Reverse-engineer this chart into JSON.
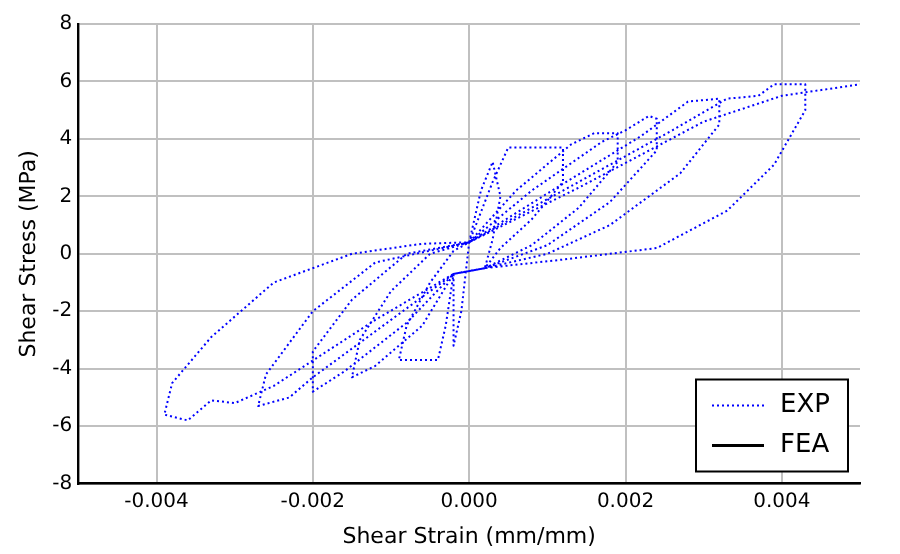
{
  "chart_data": {
    "type": "line",
    "xlabel": "Shear Strain (mm/mm)",
    "ylabel": "Shear Stress (MPa)",
    "xlim": [
      -0.005,
      0.005
    ],
    "xticks": [
      -0.004,
      -0.002,
      {
        "value": 0,
        "label": "0.000"
      },
      0.002,
      0.004
    ],
    "ylim": [
      -8,
      8
    ],
    "yticks": [
      -8,
      -6,
      -4,
      -2,
      0,
      2,
      4,
      6,
      8
    ],
    "grid": true,
    "legend": "bottom right",
    "series": [
      {
        "name": "EXP",
        "color": "#0000ff",
        "line_style": "dotted",
        "x": [
          0,
          0.00015,
          0.0003,
          0.0004,
          0.0003,
          0.0002,
          -0.0002,
          -0.0002,
          -0.0002,
          -0.0001,
          0,
          0.0003,
          0.0005,
          0.0012,
          0.0012,
          0.0008,
          0.0004,
          0.0002,
          -0.0002,
          -0.0003,
          -0.0004,
          -0.0009,
          -0.0008,
          -0.0005,
          -0.0002,
          0,
          0.0006,
          0.0013,
          0.0016,
          0.0019,
          0.0019,
          0.0014,
          0.0008,
          0.0002,
          -0.0002,
          -0.0006,
          -0.0012,
          -0.0015,
          -0.0014,
          -0.001,
          -0.0005,
          0,
          0.0008,
          0.0017,
          0.002,
          0.0023,
          0.0024,
          0.0024,
          0.0018,
          0.001,
          0.0002,
          -0.0002,
          -0.0008,
          -0.0016,
          -0.002,
          -0.002,
          -0.0015,
          -0.0008,
          0,
          0.001,
          0.0022,
          0.0028,
          0.0032,
          0.0032,
          0.0027,
          0.0018,
          0.001,
          0.0002,
          -0.0002,
          -0.001,
          -0.002,
          -0.0023,
          -0.0027,
          -0.0026,
          -0.002,
          -0.0012,
          0,
          0.0012,
          0.0026,
          0.0033,
          0.0037,
          0.0039,
          0.0043,
          0.0043,
          0.0039,
          0.0033,
          0.0024,
          0.0012,
          0.0002,
          -0.0002,
          -0.0012,
          -0.0025,
          -0.003,
          -0.0033,
          -0.0036,
          -0.0039,
          -0.0038,
          -0.0033,
          -0.0025,
          -0.0015,
          -0.0006,
          0,
          0.0014,
          0.003,
          0.004,
          0.005
        ],
        "values": [
          0.4,
          2.2,
          3.2,
          2.0,
          0.5,
          -0.5,
          -0.7,
          -2.2,
          -3.2,
          -2.0,
          0.4,
          2.5,
          3.7,
          3.7,
          2.5,
          1.2,
          0.2,
          -0.5,
          -0.7,
          -2.5,
          -3.7,
          -3.7,
          -2.5,
          -1.0,
          0.1,
          0.4,
          2.2,
          3.8,
          4.2,
          4.2,
          3.2,
          1.6,
          0.3,
          -0.5,
          -0.7,
          -2.5,
          -3.9,
          -4.3,
          -3.0,
          -1.3,
          0.0,
          0.4,
          2.2,
          3.9,
          4.3,
          4.8,
          4.7,
          3.6,
          1.8,
          0.3,
          -0.5,
          -0.7,
          -2.4,
          -4.1,
          -4.8,
          -3.4,
          -1.6,
          0.0,
          0.4,
          2.1,
          4.1,
          5.3,
          5.4,
          4.5,
          2.8,
          1.0,
          0.0,
          -0.5,
          -0.7,
          -2.3,
          -4.3,
          -5.0,
          -5.3,
          -4.2,
          -2.0,
          -0.3,
          0.4,
          2.2,
          4.3,
          5.4,
          5.5,
          5.9,
          5.9,
          5.0,
          3.1,
          1.5,
          0.2,
          -0.2,
          -0.5,
          -0.7,
          -2.3,
          -4.6,
          -5.2,
          -5.1,
          -5.8,
          -5.6,
          -4.5,
          -2.9,
          -1.0,
          0.0,
          0.35,
          0.4,
          2.3,
          4.6,
          5.5,
          5.9
        ]
      },
      {
        "name": "FEA",
        "color": "#000000",
        "line_style": "solid"
      }
    ]
  }
}
